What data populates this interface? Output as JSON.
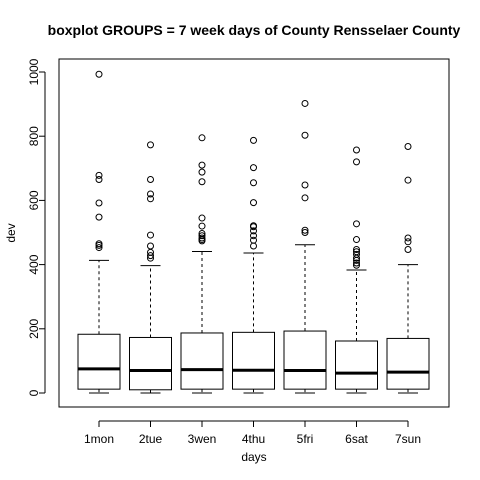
{
  "chart_data": {
    "type": "boxplot",
    "title": "boxplot GROUPS = 7 week days of County Rensselaer County",
    "xlabel": "days",
    "ylabel": "dev",
    "ylim": [
      0,
      1000
    ],
    "yticks": [
      0,
      200,
      400,
      600,
      800,
      1000
    ],
    "grid": false,
    "categories": [
      "1mon",
      "2tue",
      "3wen",
      "4thu",
      "5fri",
      "6sat",
      "7sun"
    ],
    "boxes": [
      {
        "min": 0,
        "q1": 12,
        "median": 75,
        "q3": 183,
        "whisker_high": 413,
        "outliers": [
          453,
          460,
          465,
          548,
          592,
          665,
          678,
          993
        ]
      },
      {
        "min": 0,
        "q1": 10,
        "median": 70,
        "q3": 173,
        "whisker_high": 397,
        "outliers": [
          420,
          428,
          438,
          458,
          492,
          605,
          620,
          665,
          773
        ]
      },
      {
        "min": 0,
        "q1": 12,
        "median": 73,
        "q3": 187,
        "whisker_high": 441,
        "outliers": [
          474,
          478,
          483,
          490,
          497,
          520,
          545,
          658,
          688,
          710,
          795
        ]
      },
      {
        "min": 0,
        "q1": 12,
        "median": 71,
        "q3": 189,
        "whisker_high": 436,
        "outliers": [
          458,
          476,
          490,
          505,
          518,
          521,
          593,
          655,
          702,
          787
        ]
      },
      {
        "min": 0,
        "q1": 12,
        "median": 70,
        "q3": 193,
        "whisker_high": 462,
        "outliers": [
          500,
          507,
          608,
          648,
          803,
          902
        ]
      },
      {
        "min": 0,
        "q1": 12,
        "median": 62,
        "q3": 162,
        "whisker_high": 383,
        "outliers": [
          398,
          405,
          413,
          420,
          432,
          440,
          447,
          478,
          527,
          720,
          757
        ]
      },
      {
        "min": 0,
        "q1": 12,
        "median": 65,
        "q3": 170,
        "whisker_high": 400,
        "outliers": [
          447,
          471,
          483,
          663,
          768
        ]
      }
    ]
  }
}
